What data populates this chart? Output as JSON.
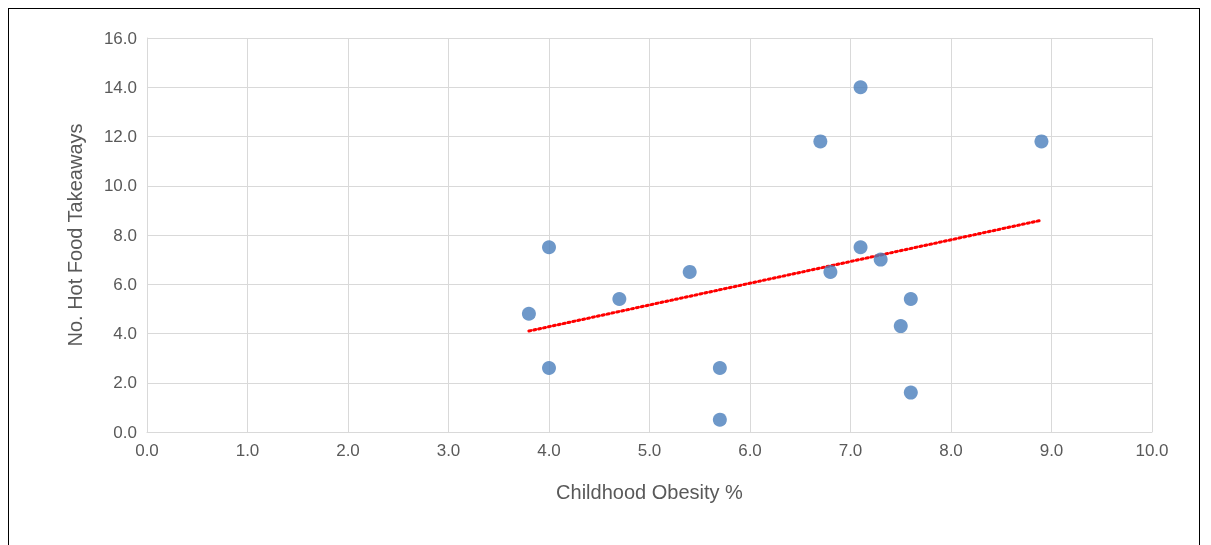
{
  "chart_data": {
    "type": "scatter",
    "xlabel": "Childhood Obesity %",
    "ylabel": "No. Hot Food Takeaways",
    "xlim": [
      0,
      10
    ],
    "xticks": [
      {
        "value": 0,
        "label": "0.0"
      },
      {
        "value": 1,
        "label": "1.0"
      },
      {
        "value": 2,
        "label": "2.0"
      },
      {
        "value": 3,
        "label": "3.0"
      },
      {
        "value": 4,
        "label": "4.0"
      },
      {
        "value": 5,
        "label": "5.0"
      },
      {
        "value": 6,
        "label": "6.0"
      },
      {
        "value": 7,
        "label": "7.0"
      },
      {
        "value": 8,
        "label": "8.0"
      },
      {
        "value": 9,
        "label": "9.0"
      },
      {
        "value": 10,
        "label": "10.0"
      }
    ],
    "ylim": [
      0,
      16
    ],
    "yticks": [
      {
        "value": 0,
        "label": "0.0"
      },
      {
        "value": 2,
        "label": "2.0"
      },
      {
        "value": 4,
        "label": "4.0"
      },
      {
        "value": 6,
        "label": "6.0"
      },
      {
        "value": 8,
        "label": "8.0"
      },
      {
        "value": 10,
        "label": "10.0"
      },
      {
        "value": 12,
        "label": "12.0"
      },
      {
        "value": 14,
        "label": "14.0"
      },
      {
        "value": 16,
        "label": "16.0"
      }
    ],
    "grid": true,
    "marker": "circle",
    "series": [
      {
        "color": "#4a7ebb",
        "x": [
          3.8,
          4.0,
          4.0,
          4.7,
          5.4,
          5.7,
          5.7,
          6.7,
          6.8,
          7.1,
          7.1,
          7.3,
          7.5,
          7.6,
          7.6,
          8.9
        ],
        "values": [
          4.8,
          7.5,
          2.6,
          5.4,
          6.5,
          2.6,
          0.5,
          11.8,
          6.5,
          14.0,
          7.5,
          7.0,
          4.3,
          5.4,
          1.6,
          11.8
        ]
      },
      {
        "type": "line",
        "color": "#ff0000",
        "line_style": "dotted",
        "marker": "none",
        "x": [
          3.8,
          8.9
        ],
        "values": [
          4.1,
          8.6
        ]
      }
    ]
  }
}
